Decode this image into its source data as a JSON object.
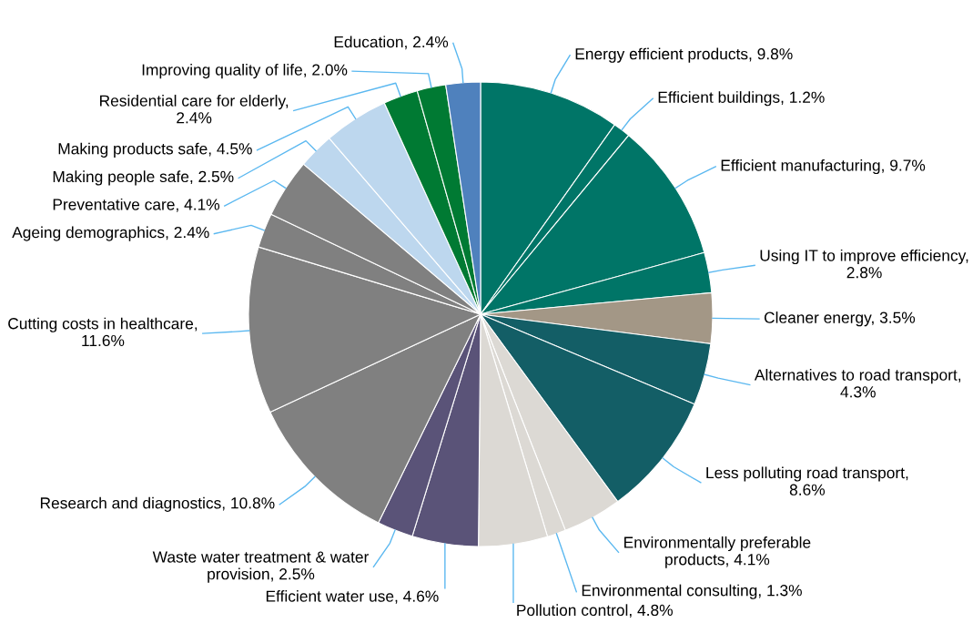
{
  "chart_data": {
    "type": "pie",
    "categories": [
      "Energy efficient products, 9.8%",
      "Efficient buildings, 1.2%",
      "Efficient manufacturing, 9.7%",
      "Using IT to improve efficiency, 2.8%",
      "Cleaner energy, 3.5%",
      "Alternatives to road transport, 4.3%",
      "Less polluting road transport, 8.6%",
      "Environmentally preferable products, 4.1%",
      "Environmental consulting, 1.3%",
      "Pollution control, 4.8%",
      "Efficient water use, 4.6%",
      "Waste water treatment & water provision, 2.5%",
      "Research and diagnostics, 10.8%",
      "Cutting costs in healthcare, 11.6%",
      "Ageing demographics, 2.4%",
      "Preventative care, 4.1%",
      "Making people safe, 2.5%",
      "Making products safe, 4.5%",
      "Residential care for elderly, 2.4%",
      "Improving quality of life, 2.0%",
      "Education, 2.4%"
    ],
    "values": [
      9.8,
      1.2,
      9.7,
      2.8,
      3.5,
      4.3,
      8.6,
      4.1,
      1.3,
      4.8,
      4.6,
      2.5,
      10.8,
      11.6,
      2.4,
      4.1,
      2.5,
      4.5,
      2.4,
      2.0,
      2.4
    ],
    "colors": [
      "#007567",
      "#007567",
      "#007567",
      "#007567",
      "#a39786",
      "#135e66",
      "#135e66",
      "#dcd9d4",
      "#dcd9d4",
      "#dcd9d4",
      "#5a5378",
      "#5a5378",
      "#808080",
      "#808080",
      "#808080",
      "#808080",
      "#bdd7ee",
      "#bdd7ee",
      "#007a33",
      "#007a33",
      "#4f81bd"
    ],
    "legend": false
  }
}
